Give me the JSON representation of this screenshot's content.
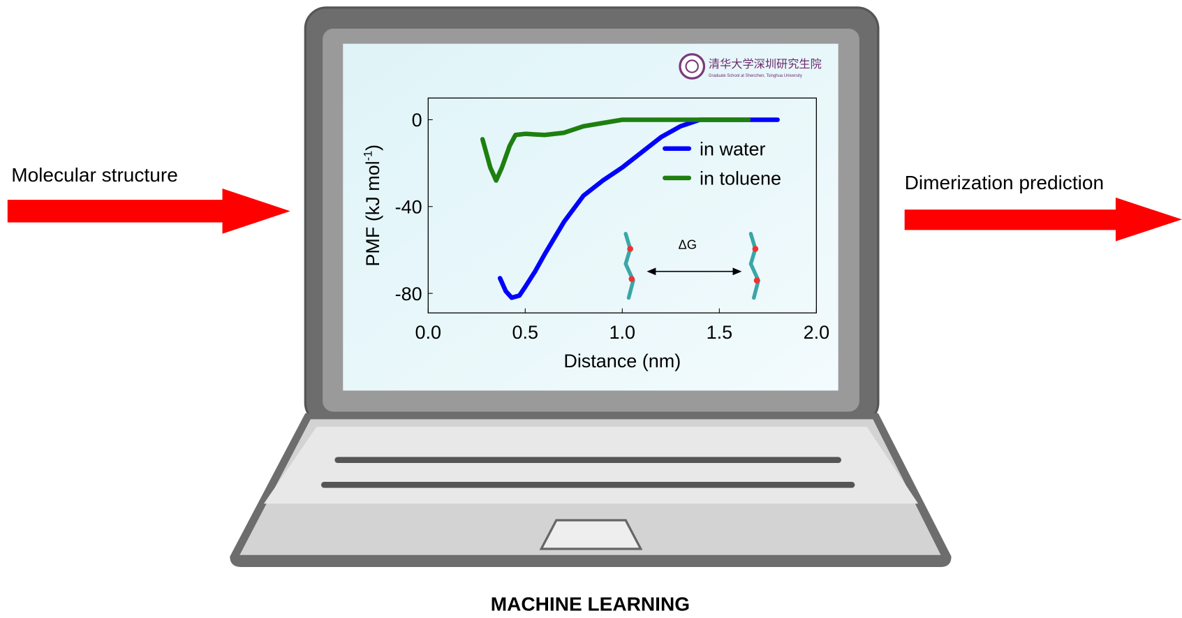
{
  "input_label": "Molecular structure",
  "output_label": "Dimerization prediction",
  "caption": "MACHINE LEARNING",
  "logo": {
    "name": "清华大学深圳研究生院",
    "subtitle": "Graduate School at Shenzhen, Tsinghua University"
  },
  "annotation": "ΔG",
  "chart_data": {
    "type": "line",
    "x_label": "Distance (nm)",
    "y_label": {
      "text": "PMF (kJ mol",
      "superscript": "-1",
      "suffix": ")"
    },
    "xlim": [
      0,
      2
    ],
    "ylim": [
      -89,
      10
    ],
    "xticks": [
      {
        "value": 0,
        "label": "0.0"
      },
      0.5,
      {
        "value": 1,
        "label": "1.0"
      },
      1.5,
      {
        "value": 2,
        "label": "2.0"
      }
    ],
    "yticks": [
      0,
      -40,
      -80
    ],
    "legend": "upper right",
    "series": [
      {
        "name": "in water",
        "color": "#0000ff",
        "x": [
          0.37,
          0.4,
          0.43,
          0.47,
          0.5,
          0.55,
          0.6,
          0.7,
          0.8,
          0.9,
          1.0,
          1.1,
          1.2,
          1.3,
          1.4,
          1.5,
          1.6,
          1.7,
          1.8
        ],
        "values": [
          -73,
          -79,
          -82,
          -81,
          -77,
          -70,
          -62,
          -47,
          -35,
          -28,
          -22,
          -15,
          -8,
          -3,
          0,
          0,
          0,
          0,
          0
        ]
      },
      {
        "name": "in toluene",
        "color": "#1e7f10",
        "x": [
          0.28,
          0.32,
          0.35,
          0.38,
          0.42,
          0.45,
          0.5,
          0.6,
          0.7,
          0.8,
          0.9,
          1.0,
          1.2,
          1.4,
          1.65
        ],
        "values": [
          -9,
          -22,
          -28,
          -22,
          -12,
          -7,
          -6.5,
          -7,
          -6,
          -3,
          -1.5,
          0,
          0,
          0,
          0
        ]
      }
    ]
  }
}
